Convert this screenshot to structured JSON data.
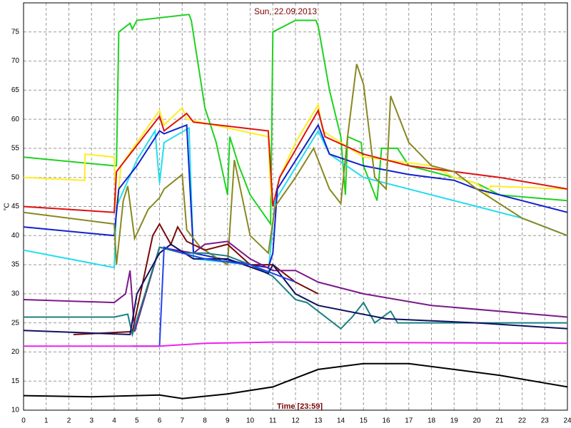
{
  "chart_data": {
    "type": "line",
    "title": "Sun, 22.09.2013",
    "x_label": "Time [23:59]",
    "y_label": "°C",
    "xlim": [
      0,
      24
    ],
    "xticks": [
      0,
      1,
      2,
      3,
      4,
      5,
      6,
      7,
      8,
      9,
      10,
      11,
      12,
      13,
      14,
      15,
      16,
      17,
      18,
      19,
      20,
      21,
      22,
      23,
      24
    ],
    "ylim": [
      10,
      80
    ],
    "yticks": [
      10,
      15,
      20,
      25,
      30,
      35,
      40,
      45,
      50,
      55,
      60,
      65,
      70,
      75
    ],
    "grid": true,
    "series": [
      {
        "color": "#1ed21e",
        "x": [
          0,
          4,
          4.1,
          4.2,
          4.7,
          4.8,
          5,
          7.3,
          7.4,
          8,
          8.5,
          9,
          9.1,
          9.5,
          10,
          10.9,
          11,
          12,
          12.9,
          13,
          13.5,
          14,
          14.2,
          14.3,
          14.9,
          15,
          15.6,
          15.8,
          16.5,
          17,
          20,
          21,
          24
        ],
        "values": [
          53.5,
          52,
          52,
          75,
          76.5,
          75.5,
          77,
          78,
          77,
          62,
          56,
          47,
          57,
          52,
          47,
          42,
          75,
          77,
          77,
          76,
          65,
          57,
          47,
          57,
          56,
          52,
          46,
          55,
          55,
          52,
          49,
          47,
          46
        ]
      },
      {
        "color": "#ffee22",
        "x": [
          0,
          2.7,
          2.71,
          4,
          4.1,
          4.3,
          5,
          6,
          6.2,
          7,
          7.2,
          10.8,
          10.9,
          11,
          11.3,
          12,
          13,
          13.2,
          15,
          18,
          19,
          20,
          20.5,
          20.6,
          24
        ],
        "values": [
          50,
          49.5,
          54,
          53.5,
          44,
          52,
          56,
          61.5,
          59,
          62,
          60,
          57,
          48,
          45,
          50,
          56,
          62.5,
          58,
          53.5,
          52,
          50,
          49,
          47,
          48.5,
          48
        ]
      },
      {
        "color": "#dd1111",
        "x": [
          0,
          4,
          4.1,
          4.4,
          5,
          6,
          6.2,
          7.2,
          7.5,
          10.8,
          11,
          11.3,
          13,
          13.3,
          15,
          17,
          21,
          24
        ],
        "values": [
          45,
          44,
          51,
          52.5,
          55.5,
          60.5,
          58,
          61,
          59.5,
          58,
          45,
          50,
          61.5,
          57,
          54,
          52,
          50,
          48
        ]
      },
      {
        "color": "#22ddee",
        "x": [
          0,
          4,
          4.1,
          5,
          5.8,
          6,
          6.2,
          7.3,
          7.5,
          10,
          10.8,
          11.1,
          13,
          13.5,
          15,
          18,
          20,
          22,
          24
        ],
        "values": [
          37.5,
          34.5,
          45,
          53,
          58,
          49,
          56,
          58.5,
          36,
          35,
          33.5,
          46,
          58,
          54,
          50,
          47,
          45,
          43,
          40
        ]
      },
      {
        "color": "#1122cc",
        "x": [
          0,
          4,
          4.2,
          5,
          6,
          6.2,
          7.2,
          7.5,
          10,
          10.8,
          11,
          11.2,
          13,
          13.5,
          15,
          17,
          19,
          20,
          22,
          24
        ],
        "values": [
          41.5,
          40,
          48,
          52,
          58,
          57.5,
          59,
          37,
          35,
          34.5,
          37,
          48,
          59,
          54,
          52,
          50.5,
          49.5,
          48,
          46,
          44
        ]
      },
      {
        "color": "#888822",
        "x": [
          0,
          4,
          4.1,
          4.4,
          4.6,
          4.9,
          5.5,
          6,
          6.2,
          7,
          7.2,
          7.8,
          9,
          9.3,
          10,
          10.8,
          11.1,
          12,
          12.8,
          13.5,
          14,
          14.3,
          14.7,
          15,
          15.5,
          16,
          16.2,
          17,
          18,
          19,
          20,
          22,
          24
        ],
        "values": [
          44,
          42,
          35,
          46,
          48.5,
          39.5,
          44.5,
          46.5,
          48,
          50.5,
          41,
          38,
          35,
          53,
          40,
          37,
          45,
          50,
          55,
          48,
          45.5,
          57,
          69.5,
          66,
          50,
          48,
          64,
          56,
          52,
          51,
          48,
          43,
          40
        ]
      },
      {
        "color": "#7a0a0a",
        "x": [
          2.2,
          4.8,
          5.7,
          6,
          6.5,
          6.8,
          7.2,
          8,
          9,
          10,
          11,
          12,
          13
        ],
        "values": [
          23,
          23.5,
          40,
          42,
          38.5,
          41.5,
          39,
          37.5,
          38.5,
          35,
          35,
          32,
          30
        ]
      },
      {
        "color": "#7a1a8a",
        "x": [
          0,
          4,
          4.5,
          4.7,
          4.9,
          6,
          7.5,
          8,
          9,
          10,
          11,
          12,
          13,
          15,
          18,
          24
        ],
        "values": [
          29,
          28.5,
          30,
          34,
          23.5,
          38,
          37,
          38.5,
          39,
          36,
          34,
          34,
          32,
          30,
          28,
          26
        ]
      },
      {
        "color": "#1a8080",
        "x": [
          0,
          4,
          4.6,
          4.8,
          6,
          7,
          8,
          9,
          10,
          11,
          12,
          12.5,
          13,
          14,
          14.5,
          15,
          15.5,
          16.2,
          16.5,
          18,
          24
        ],
        "values": [
          26,
          26,
          26.5,
          23,
          38,
          37,
          37,
          36.5,
          35,
          33,
          29,
          28.5,
          27,
          24,
          26,
          28.5,
          25,
          27,
          25,
          25,
          25
        ]
      },
      {
        "color": "#101060",
        "x": [
          0,
          4.7,
          5,
          6,
          6.5,
          7.5,
          9,
          10.8,
          11,
          12,
          13,
          16,
          20,
          24
        ],
        "values": [
          23.7,
          23,
          30,
          37,
          38.5,
          36,
          36,
          33.5,
          35,
          30,
          28,
          25.7,
          25,
          24
        ]
      },
      {
        "color": "#2244ee",
        "x": [
          4.8,
          6,
          6.2,
          7,
          8,
          10,
          11,
          12
        ],
        "values": [
          21,
          21,
          38,
          37,
          36,
          35,
          33.5,
          32
        ]
      },
      {
        "color": "#ee22ee",
        "x": [
          0,
          6,
          8,
          11,
          24
        ],
        "values": [
          21,
          21,
          21.5,
          21.7,
          21.5
        ]
      },
      {
        "color": "#000000",
        "x": [
          0,
          3,
          6,
          7,
          9,
          11,
          12,
          13,
          15,
          17,
          19,
          21,
          24
        ],
        "values": [
          12.5,
          12.3,
          12.6,
          12,
          12.8,
          14,
          15.5,
          17,
          18,
          18,
          17,
          16,
          14
        ]
      }
    ]
  }
}
